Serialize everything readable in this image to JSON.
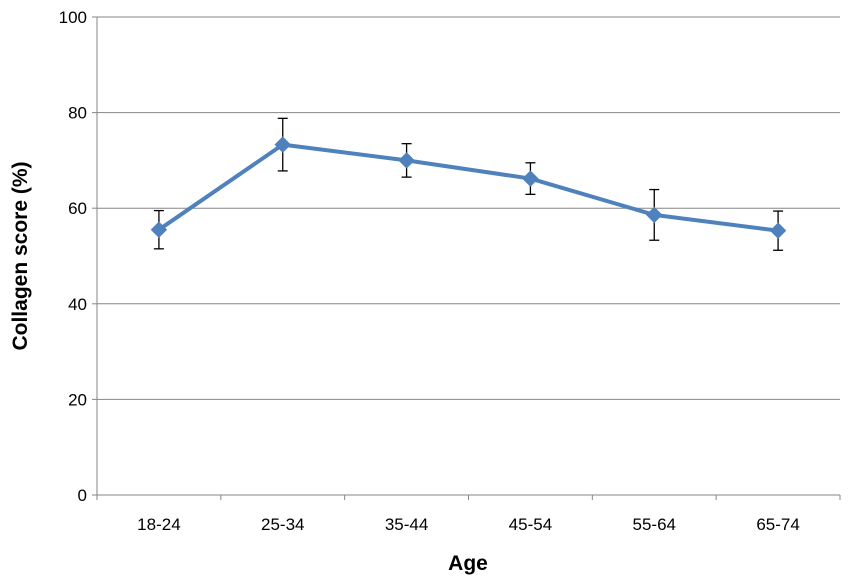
{
  "chart_data": {
    "type": "line",
    "title": "",
    "xlabel": "Age",
    "ylabel": "Collagen score (%)",
    "ylim": [
      0,
      100
    ],
    "yticks": [
      0,
      20,
      40,
      60,
      80,
      100
    ],
    "grid": "horizontal",
    "legend": "none",
    "categories": [
      "18-24",
      "25-34",
      "35-44",
      "45-54",
      "55-64",
      "65-74"
    ],
    "series": [
      {
        "values": [
          55.5,
          73.3,
          70.0,
          66.2,
          58.6,
          55.3
        ],
        "error_low": [
          51.5,
          67.8,
          66.5,
          62.9,
          53.3,
          51.2
        ],
        "error_high": [
          59.5,
          78.8,
          73.5,
          69.5,
          63.9,
          59.4
        ],
        "color": "#4f81bd",
        "marker": "diamond"
      }
    ]
  }
}
